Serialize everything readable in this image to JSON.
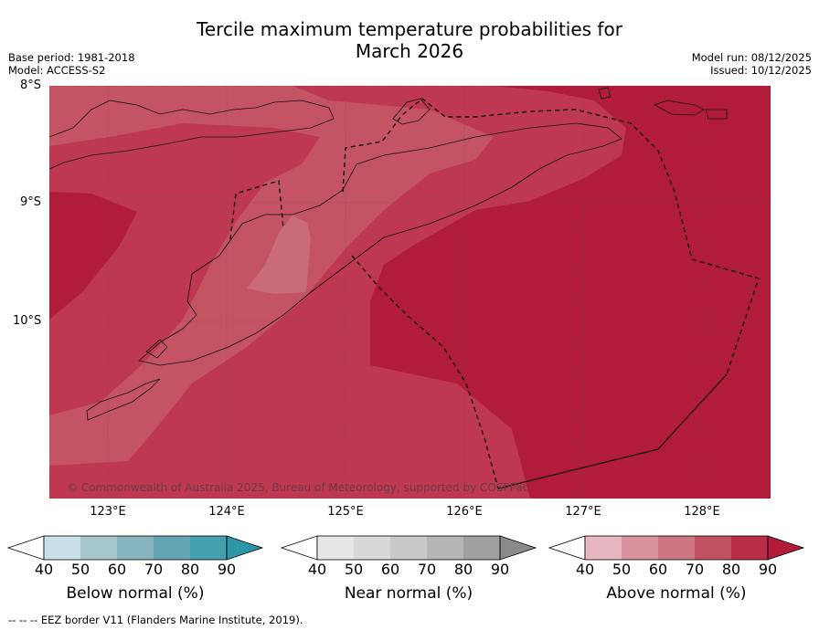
{
  "title": {
    "line1": "Tercile maximum temperature probabilities for",
    "line2": "March 2026"
  },
  "meta_left": {
    "base_period": "Base period: 1981-2018",
    "model": "Model: ACCESS-S2"
  },
  "meta_right": {
    "model_run": "Model run: 08/12/2025",
    "issued": "Issued: 10/12/2025"
  },
  "map": {
    "lat_labels": [
      "8°S",
      "9°S",
      "10°S"
    ],
    "lon_labels": [
      "123°E",
      "124°E",
      "125°E",
      "126°E",
      "127°E",
      "128°E"
    ],
    "copyright": "© Commonwealth of Australia 2025, Bureau of Meteorology, supported by COSPPac"
  },
  "colorbars": [
    {
      "name": "Below normal (%)",
      "ticks": [
        "40",
        "50",
        "60",
        "70",
        "80",
        "90"
      ],
      "colors": [
        "#ffffff",
        "#c8e1e8",
        "#a6c6cd",
        "#86b4bf",
        "#65a5b3",
        "#45a0b0",
        "#2e94a8"
      ]
    },
    {
      "name": "Near normal (%)",
      "ticks": [
        "40",
        "50",
        "60",
        "70",
        "80",
        "90"
      ],
      "colors": [
        "#ffffff",
        "#e6e6e6",
        "#d8d8d8",
        "#c9c9c9",
        "#b5b5b5",
        "#a0a0a0",
        "#8a8a8a"
      ]
    },
    {
      "name": "Above normal (%)",
      "ticks": [
        "40",
        "50",
        "60",
        "70",
        "80",
        "90"
      ],
      "colors": [
        "#ffffff",
        "#e6b7c0",
        "#d9939f",
        "#cc7681",
        "#c2525f",
        "#b82c44",
        "#b01c3a"
      ]
    }
  ],
  "footer": "--  --  -- EEZ border V11 (Flanders Marine Institute, 2019)."
}
